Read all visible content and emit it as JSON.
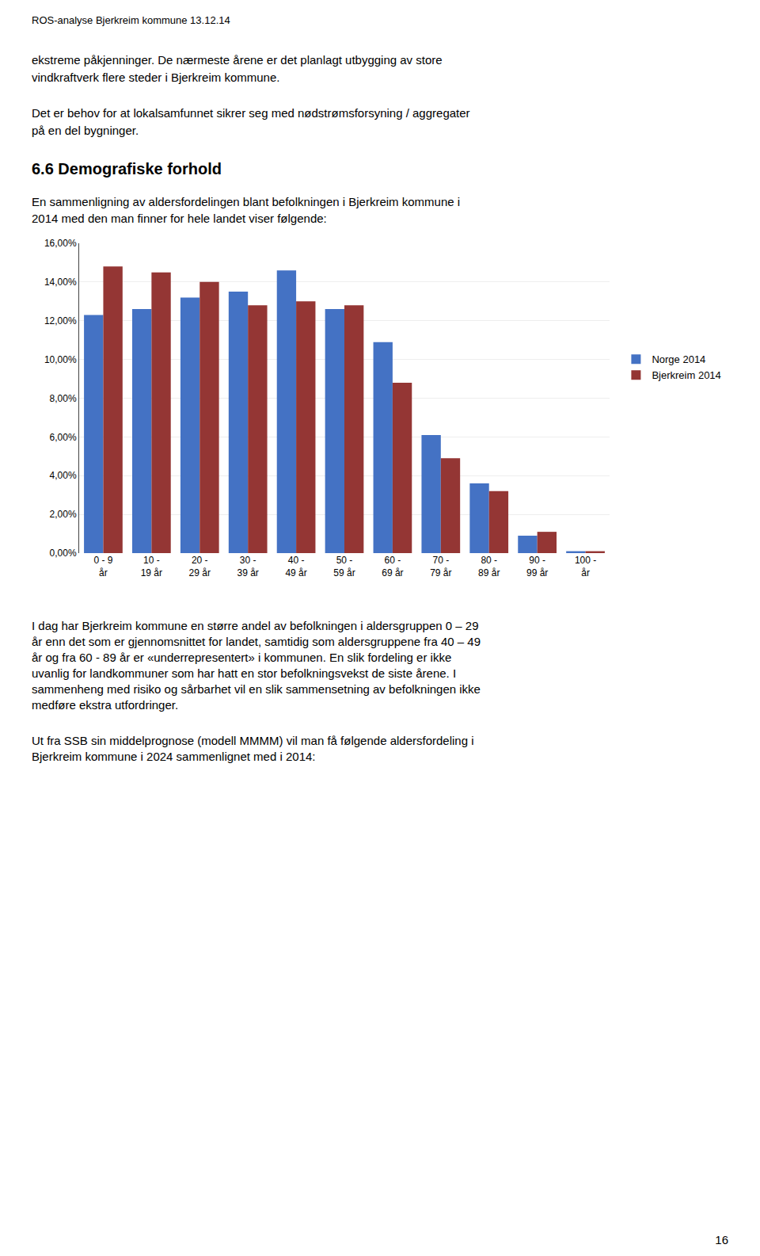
{
  "header": "ROS-analyse Bjerkreim kommune  13.12.14",
  "paragraphs_above": [
    [
      "ekstreme påkjenninger. De nærmeste årene er det planlagt utbygging av store",
      "vindkraftverk flere steder i Bjerkreim kommune."
    ],
    [
      "Det er behov for at lokalsamfunnet sikrer seg med nødstrømsforsyning / aggregater",
      "på en del bygninger."
    ]
  ],
  "section_title": "6.6 Demografiske forhold",
  "section_body": [
    "En sammenligning av aldersfordelingen blant befolkningen i Bjerkreim kommune i",
    "2014 med den man finner for hele landet viser følgende:"
  ],
  "paragraphs_below": [
    [
      "I dag har Bjerkreim kommune en større andel av befolkningen i aldersgruppen 0 – 29",
      "år enn det som er gjennomsnittet for landet, samtidig som aldersgruppene fra 40 – 49",
      "år og fra 60 - 89 år er «underrepresentert» i kommunen. En slik fordeling er ikke",
      "uvanlig for landkommuner som har hatt en stor befolkningsvekst de siste årene. I",
      "sammenheng med risiko og sårbarhet vil en slik sammensetning av befolkningen ikke",
      "medføre ekstra utfordringer."
    ],
    [
      "Ut fra SSB sin middelprognose (modell MMMM) vil man få følgende aldersfordeling i",
      "Bjerkreim kommune i 2024 sammenlignet med i 2014:"
    ]
  ],
  "page_number": "16",
  "chart_data": {
    "type": "bar",
    "categories": [
      "0 - 9\når",
      "10 -\n19 år",
      "20 -\n29 år",
      "30 -\n39 år",
      "40 -\n49 år",
      "50 -\n59 år",
      "60 -\n69 år",
      "70 -\n79 år",
      "80 -\n89 år",
      "90 -\n99 år",
      "100 -\når"
    ],
    "series": [
      {
        "name": "Norge 2014",
        "color": "#4472C4",
        "values": [
          0.123,
          0.126,
          0.132,
          0.135,
          0.146,
          0.126,
          0.109,
          0.061,
          0.036,
          0.009,
          0.001
        ]
      },
      {
        "name": "Bjerkreim 2014",
        "color": "#943634",
        "values": [
          0.148,
          0.145,
          0.14,
          0.128,
          0.13,
          0.128,
          0.088,
          0.049,
          0.032,
          0.011,
          0.001
        ]
      }
    ],
    "ylim": [
      0,
      0.16
    ],
    "yticks": [
      {
        "value": 0,
        "label": "0,00%"
      },
      {
        "value": 0.02,
        "label": "2,00%"
      },
      {
        "value": 0.04,
        "label": "4,00%"
      },
      {
        "value": 0.06,
        "label": "6,00%"
      },
      {
        "value": 0.08,
        "label": "8,00%"
      },
      {
        "value": 0.1,
        "label": "10,00%"
      },
      {
        "value": 0.12,
        "label": "12,00%"
      },
      {
        "value": 0.14,
        "label": "14,00%"
      },
      {
        "value": 0.16,
        "label": "16,00%"
      }
    ],
    "grid": true,
    "legend": "right"
  }
}
